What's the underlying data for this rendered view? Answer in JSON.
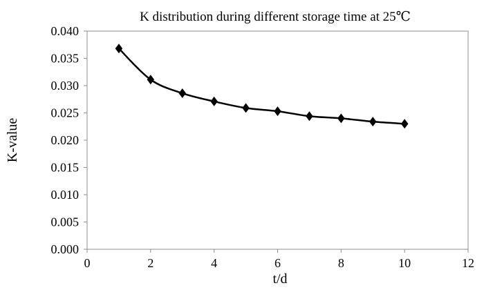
{
  "chart_data": {
    "type": "line",
    "title": "K distribution during different storage time at 25℃",
    "xlabel": "t/d",
    "ylabel": "K-value",
    "xlim": [
      0,
      12
    ],
    "ylim": [
      0,
      0.04
    ],
    "x_ticks": [
      0,
      2,
      4,
      6,
      8,
      10,
      12
    ],
    "y_ticks": [
      0,
      0.005,
      0.01,
      0.015,
      0.02,
      0.025,
      0.03,
      0.035,
      0.04
    ],
    "x_tick_labels": [
      "0",
      "2",
      "4",
      "6",
      "8",
      "10",
      "12"
    ],
    "y_tick_labels": [
      "0.000",
      "0.005",
      "0.010",
      "0.015",
      "0.020",
      "0.025",
      "0.030",
      "0.035",
      "0.040"
    ],
    "grid": false,
    "marker": "diamond",
    "series": [
      {
        "name": "K-value",
        "x": [
          1,
          2,
          3,
          4,
          5,
          6,
          7,
          8,
          9,
          10
        ],
        "y": [
          0.0368,
          0.0311,
          0.0286,
          0.0271,
          0.0259,
          0.0253,
          0.0244,
          0.024,
          0.0234,
          0.023
        ]
      }
    ],
    "colors": {
      "line": "#000000",
      "marker": "#000000",
      "frame": "#8c8c8c"
    }
  }
}
